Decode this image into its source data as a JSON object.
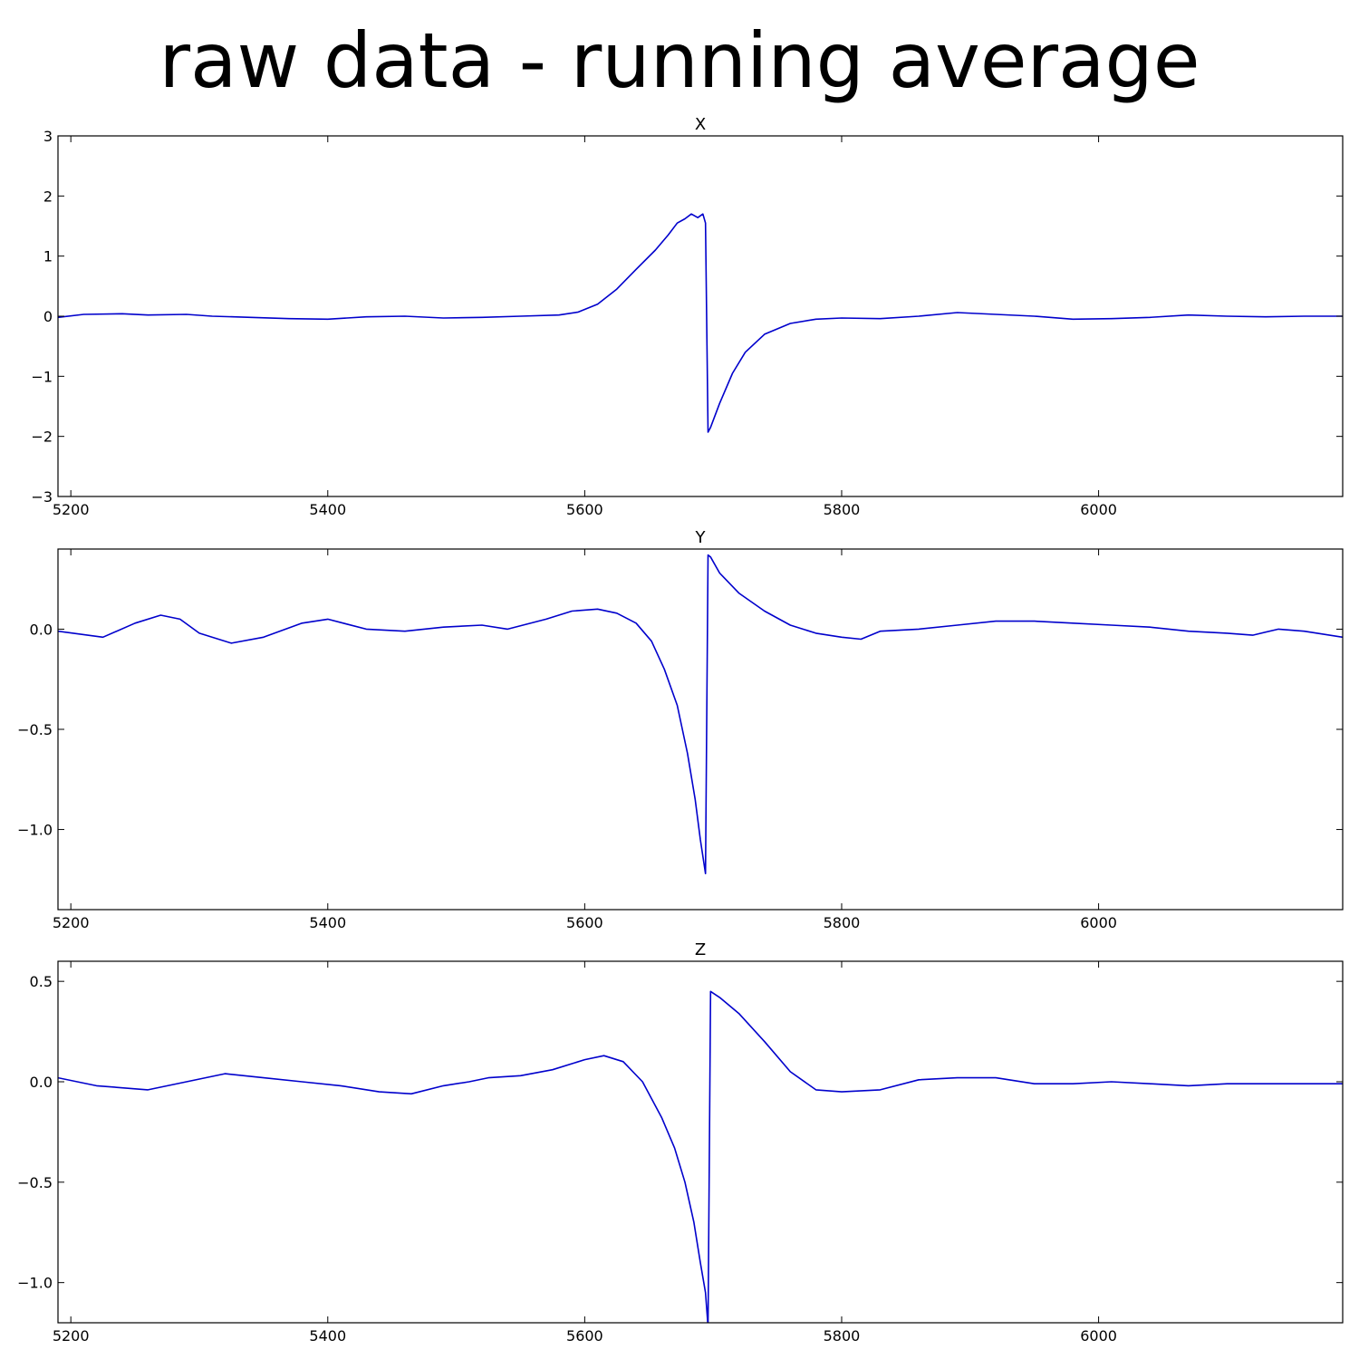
{
  "figure": {
    "title": "raw data - running average",
    "line_color": "#0000cc"
  },
  "chart_data": [
    {
      "type": "line",
      "title": "X",
      "xlabel": "",
      "ylabel": "",
      "xlim": [
        5190,
        6190
      ],
      "ylim": [
        -3,
        3
      ],
      "xticks": [
        5200,
        5400,
        5600,
        5800,
        6000
      ],
      "yticks": [
        3,
        2,
        1,
        0,
        -1,
        -2,
        -3
      ],
      "ytick_labels": [
        "3",
        "2",
        "1",
        "0",
        "−1",
        "−2",
        "−3"
      ],
      "grid": false,
      "series": [
        {
          "x": [
            5190,
            5210,
            5240,
            5260,
            5290,
            5310,
            5340,
            5370,
            5400,
            5430,
            5460,
            5490,
            5520,
            5550,
            5580,
            5595,
            5610,
            5625,
            5640,
            5655,
            5665,
            5672,
            5678,
            5683,
            5688,
            5692,
            5694,
            5696,
            5698,
            5705,
            5715,
            5725,
            5740,
            5760,
            5780,
            5800,
            5830,
            5860,
            5890,
            5920,
            5950,
            5980,
            6010,
            6040,
            6070,
            6100,
            6130,
            6160,
            6190
          ],
          "y": [
            -0.02,
            0.03,
            0.04,
            0.02,
            0.03,
            0.0,
            -0.02,
            -0.04,
            -0.05,
            -0.01,
            0.0,
            -0.03,
            -0.02,
            0.0,
            0.02,
            0.07,
            0.2,
            0.45,
            0.78,
            1.1,
            1.35,
            1.55,
            1.62,
            1.7,
            1.64,
            1.7,
            1.55,
            -1.93,
            -1.85,
            -1.45,
            -0.95,
            -0.6,
            -0.3,
            -0.12,
            -0.05,
            -0.03,
            -0.04,
            0.0,
            0.06,
            0.03,
            0.0,
            -0.05,
            -0.04,
            -0.02,
            0.02,
            0.0,
            -0.01,
            0.0,
            0.0
          ]
        }
      ]
    },
    {
      "type": "line",
      "title": "Y",
      "xlabel": "",
      "ylabel": "",
      "xlim": [
        5190,
        6190
      ],
      "ylim": [
        -1.4,
        0.4
      ],
      "xticks": [
        5200,
        5400,
        5600,
        5800,
        6000
      ],
      "yticks": [
        0.0,
        -0.5,
        -1.0
      ],
      "ytick_labels": [
        "0.0",
        "−0.5",
        "−1.0"
      ],
      "grid": false,
      "series": [
        {
          "x": [
            5190,
            5225,
            5250,
            5270,
            5285,
            5300,
            5325,
            5350,
            5380,
            5400,
            5430,
            5460,
            5490,
            5520,
            5540,
            5570,
            5590,
            5610,
            5625,
            5640,
            5652,
            5662,
            5672,
            5680,
            5686,
            5690,
            5694,
            5696,
            5698,
            5705,
            5720,
            5740,
            5760,
            5780,
            5800,
            5815,
            5830,
            5860,
            5890,
            5920,
            5950,
            5980,
            6010,
            6040,
            6070,
            6100,
            6120,
            6140,
            6160,
            6190
          ],
          "y": [
            -0.01,
            -0.04,
            0.03,
            0.07,
            0.05,
            -0.02,
            -0.07,
            -0.04,
            0.03,
            0.05,
            0.0,
            -0.01,
            0.01,
            0.02,
            0.0,
            0.05,
            0.09,
            0.1,
            0.08,
            0.03,
            -0.06,
            -0.2,
            -0.38,
            -0.62,
            -0.85,
            -1.05,
            -1.22,
            0.37,
            0.36,
            0.28,
            0.18,
            0.09,
            0.02,
            -0.02,
            -0.04,
            -0.05,
            -0.01,
            0.0,
            0.02,
            0.04,
            0.04,
            0.03,
            0.02,
            0.01,
            -0.01,
            -0.02,
            -0.03,
            0.0,
            -0.01,
            -0.04
          ]
        }
      ]
    },
    {
      "type": "line",
      "title": "Z",
      "xlabel": "",
      "ylabel": "",
      "xlim": [
        5190,
        6190
      ],
      "ylim": [
        -1.2,
        0.6
      ],
      "xticks": [
        5200,
        5400,
        5600,
        5800,
        6000
      ],
      "yticks": [
        0.5,
        0.0,
        -0.5,
        -1.0
      ],
      "ytick_labels": [
        "0.5",
        "0.0",
        "−0.5",
        "−1.0"
      ],
      "grid": false,
      "series": [
        {
          "x": [
            5190,
            5220,
            5260,
            5290,
            5320,
            5350,
            5380,
            5410,
            5440,
            5465,
            5490,
            5510,
            5525,
            5550,
            5575,
            5600,
            5615,
            5630,
            5645,
            5660,
            5670,
            5678,
            5685,
            5690,
            5694,
            5696,
            5698,
            5705,
            5720,
            5740,
            5760,
            5780,
            5800,
            5830,
            5860,
            5890,
            5920,
            5950,
            5980,
            6010,
            6040,
            6070,
            6100,
            6130,
            6160,
            6190
          ],
          "y": [
            0.02,
            -0.02,
            -0.04,
            0.0,
            0.04,
            0.02,
            0.0,
            -0.02,
            -0.05,
            -0.06,
            -0.02,
            0.0,
            0.02,
            0.03,
            0.06,
            0.11,
            0.13,
            0.1,
            0.0,
            -0.18,
            -0.33,
            -0.5,
            -0.7,
            -0.9,
            -1.05,
            -1.22,
            0.45,
            0.42,
            0.34,
            0.2,
            0.05,
            -0.04,
            -0.05,
            -0.04,
            0.01,
            0.02,
            0.02,
            -0.01,
            -0.01,
            0.0,
            -0.01,
            -0.02,
            -0.01,
            -0.01,
            -0.01,
            -0.01
          ]
        }
      ]
    }
  ]
}
